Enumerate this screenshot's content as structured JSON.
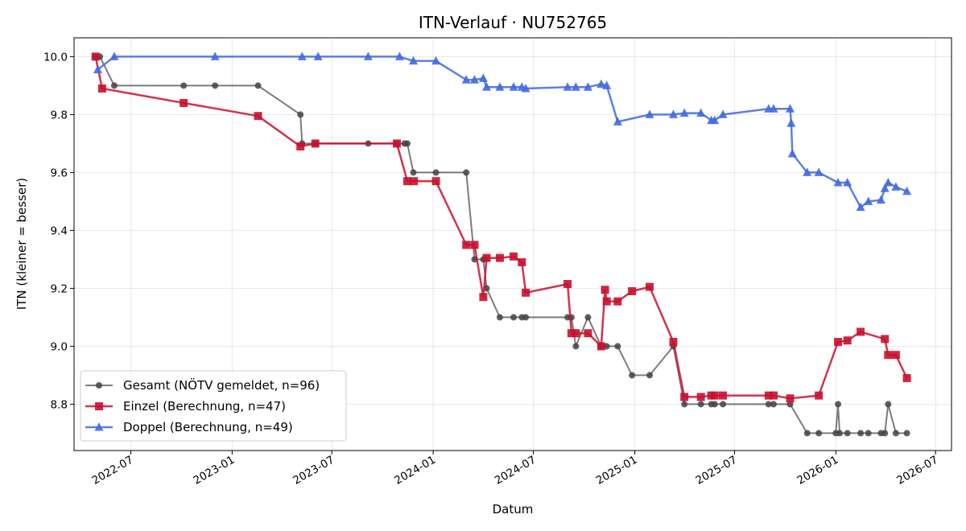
{
  "chart_data": {
    "type": "line",
    "title": "ITN-Verlauf · NU752765",
    "xlabel": "Datum",
    "ylabel": "ITN  (kleiner = besser)",
    "xlim": [
      "2022-03-20",
      "2026-07-30"
    ],
    "ylim": [
      8.64,
      10.065
    ],
    "y_ticks": [
      8.8,
      9.0,
      9.2,
      9.4,
      9.6,
      9.8,
      10.0
    ],
    "y_tick_labels": [
      "8.8",
      "9.0",
      "9.2",
      "9.4",
      "9.6",
      "9.8",
      "10.0"
    ],
    "x_ticks": [
      "2022-07-01",
      "2023-01-01",
      "2023-07-01",
      "2024-01-01",
      "2024-07-01",
      "2025-01-01",
      "2025-07-01",
      "2026-01-01",
      "2026-07-01"
    ],
    "x_tick_labels": [
      "2022-07",
      "2023-01",
      "2023-07",
      "2024-01",
      "2024-07",
      "2025-01",
      "2025-07",
      "2026-01",
      "2026-07"
    ],
    "grid": true,
    "legend_position": "lower-left",
    "series": [
      {
        "name": "Gesamt (NÖTV gemeldet, n=96)",
        "color": "#444444",
        "marker": "circle",
        "line_width": 2,
        "points": [
          [
            "2022-04-28",
            10.0
          ],
          [
            "2022-05-06",
            10.0
          ],
          [
            "2022-06-01",
            9.9
          ],
          [
            "2022-10-05",
            9.9
          ],
          [
            "2022-12-01",
            9.9
          ],
          [
            "2023-02-17",
            9.9
          ],
          [
            "2023-05-05",
            9.8
          ],
          [
            "2023-05-08",
            9.7
          ],
          [
            "2023-06-01",
            9.7
          ],
          [
            "2023-09-05",
            9.7
          ],
          [
            "2023-10-27",
            9.7
          ],
          [
            "2023-11-10",
            9.7
          ],
          [
            "2023-11-15",
            9.7
          ],
          [
            "2023-11-26",
            9.6
          ],
          [
            "2024-01-06",
            9.6
          ],
          [
            "2024-03-01",
            9.6
          ],
          [
            "2024-03-16",
            9.3
          ],
          [
            "2024-04-01",
            9.3
          ],
          [
            "2024-04-07",
            9.2
          ],
          [
            "2024-05-01",
            9.1
          ],
          [
            "2024-05-26",
            9.1
          ],
          [
            "2024-06-10",
            9.1
          ],
          [
            "2024-06-17",
            9.1
          ],
          [
            "2024-09-01",
            9.1
          ],
          [
            "2024-09-08",
            9.1
          ],
          [
            "2024-09-16",
            9.0
          ],
          [
            "2024-10-08",
            9.1
          ],
          [
            "2024-11-01",
            9.0
          ],
          [
            "2024-11-11",
            9.0
          ],
          [
            "2024-12-01",
            9.0
          ],
          [
            "2024-12-27",
            8.9
          ],
          [
            "2025-01-28",
            8.9
          ],
          [
            "2025-03-12",
            9.0
          ],
          [
            "2025-04-01",
            8.8
          ],
          [
            "2025-05-01",
            8.8
          ],
          [
            "2025-05-20",
            8.8
          ],
          [
            "2025-05-26",
            8.8
          ],
          [
            "2025-06-10",
            8.8
          ],
          [
            "2025-09-01",
            8.8
          ],
          [
            "2025-09-10",
            8.8
          ],
          [
            "2025-10-10",
            8.8
          ],
          [
            "2025-11-10",
            8.7
          ],
          [
            "2025-12-01",
            8.7
          ],
          [
            "2026-01-01",
            8.7
          ],
          [
            "2026-01-05",
            8.8
          ],
          [
            "2026-01-08",
            8.7
          ],
          [
            "2026-01-22",
            8.7
          ],
          [
            "2026-02-15",
            8.7
          ],
          [
            "2026-03-01",
            8.7
          ],
          [
            "2026-03-24",
            8.7
          ],
          [
            "2026-03-31",
            8.7
          ],
          [
            "2026-04-06",
            8.8
          ],
          [
            "2026-04-20",
            8.7
          ],
          [
            "2026-05-10",
            8.7
          ]
        ]
      },
      {
        "name": "Einzel (Berechnung, n=47)",
        "color": "#c8102e",
        "marker": "square",
        "line_width": 2.5,
        "points": [
          [
            "2022-04-28",
            10.0
          ],
          [
            "2022-05-10",
            9.89
          ],
          [
            "2022-10-05",
            9.84
          ],
          [
            "2023-02-17",
            9.795
          ],
          [
            "2023-05-05",
            9.69
          ],
          [
            "2023-06-01",
            9.7
          ],
          [
            "2023-10-27",
            9.7
          ],
          [
            "2023-11-15",
            9.57
          ],
          [
            "2023-11-27",
            9.57
          ],
          [
            "2024-01-06",
            9.57
          ],
          [
            "2024-03-01",
            9.35
          ],
          [
            "2024-03-16",
            9.35
          ],
          [
            "2024-04-01",
            9.17
          ],
          [
            "2024-04-07",
            9.305
          ],
          [
            "2024-05-01",
            9.305
          ],
          [
            "2024-05-26",
            9.31
          ],
          [
            "2024-06-10",
            9.29
          ],
          [
            "2024-06-17",
            9.185
          ],
          [
            "2024-09-01",
            9.215
          ],
          [
            "2024-09-08",
            9.045
          ],
          [
            "2024-09-16",
            9.045
          ],
          [
            "2024-10-08",
            9.045
          ],
          [
            "2024-11-01",
            9.0
          ],
          [
            "2024-11-08",
            9.195
          ],
          [
            "2024-11-11",
            9.155
          ],
          [
            "2024-12-01",
            9.155
          ],
          [
            "2024-12-27",
            9.19
          ],
          [
            "2025-01-28",
            9.205
          ],
          [
            "2025-03-12",
            9.015
          ],
          [
            "2025-04-01",
            8.825
          ],
          [
            "2025-05-01",
            8.825
          ],
          [
            "2025-05-20",
            8.83
          ],
          [
            "2025-05-26",
            8.83
          ],
          [
            "2025-06-10",
            8.83
          ],
          [
            "2025-09-01",
            8.83
          ],
          [
            "2025-09-10",
            8.83
          ],
          [
            "2025-10-10",
            8.82
          ],
          [
            "2025-12-01",
            8.83
          ],
          [
            "2026-01-05",
            9.015
          ],
          [
            "2026-01-22",
            9.02
          ],
          [
            "2026-02-15",
            9.05
          ],
          [
            "2026-03-31",
            9.025
          ],
          [
            "2026-04-06",
            8.97
          ],
          [
            "2026-04-20",
            8.97
          ],
          [
            "2026-05-10",
            8.89
          ]
        ]
      },
      {
        "name": "Doppel (Berechnung, n=49)",
        "color": "#4169e1",
        "marker": "triangle",
        "line_width": 2.5,
        "points": [
          [
            "2022-05-02",
            9.955
          ],
          [
            "2022-06-01",
            10.0
          ],
          [
            "2022-12-01",
            10.0
          ],
          [
            "2023-05-08",
            10.0
          ],
          [
            "2023-06-06",
            10.0
          ],
          [
            "2023-09-05",
            10.0
          ],
          [
            "2023-11-01",
            10.0
          ],
          [
            "2023-11-26",
            9.985
          ],
          [
            "2024-01-06",
            9.985
          ],
          [
            "2024-03-01",
            9.92
          ],
          [
            "2024-03-16",
            9.92
          ],
          [
            "2024-04-01",
            9.925
          ],
          [
            "2024-04-07",
            9.895
          ],
          [
            "2024-05-01",
            9.895
          ],
          [
            "2024-05-26",
            9.895
          ],
          [
            "2024-06-10",
            9.895
          ],
          [
            "2024-06-17",
            9.89
          ],
          [
            "2024-09-01",
            9.895
          ],
          [
            "2024-09-16",
            9.895
          ],
          [
            "2024-10-08",
            9.895
          ],
          [
            "2024-11-01",
            9.905
          ],
          [
            "2024-11-11",
            9.9
          ],
          [
            "2024-12-01",
            9.775
          ],
          [
            "2025-01-28",
            9.8
          ],
          [
            "2025-03-12",
            9.8
          ],
          [
            "2025-04-01",
            9.805
          ],
          [
            "2025-05-01",
            9.805
          ],
          [
            "2025-05-20",
            9.78
          ],
          [
            "2025-05-26",
            9.78
          ],
          [
            "2025-06-10",
            9.8
          ],
          [
            "2025-09-01",
            9.82
          ],
          [
            "2025-09-10",
            9.82
          ],
          [
            "2025-10-10",
            9.82
          ],
          [
            "2025-10-12",
            9.77
          ],
          [
            "2025-10-14",
            9.665
          ],
          [
            "2025-11-10",
            9.6
          ],
          [
            "2025-12-01",
            9.6
          ],
          [
            "2026-01-05",
            9.565
          ],
          [
            "2026-01-22",
            9.565
          ],
          [
            "2026-02-15",
            9.48
          ],
          [
            "2026-03-01",
            9.5
          ],
          [
            "2026-03-24",
            9.505
          ],
          [
            "2026-03-31",
            9.545
          ],
          [
            "2026-04-06",
            9.565
          ],
          [
            "2026-04-20",
            9.55
          ],
          [
            "2026-05-10",
            9.535
          ]
        ]
      }
    ]
  }
}
